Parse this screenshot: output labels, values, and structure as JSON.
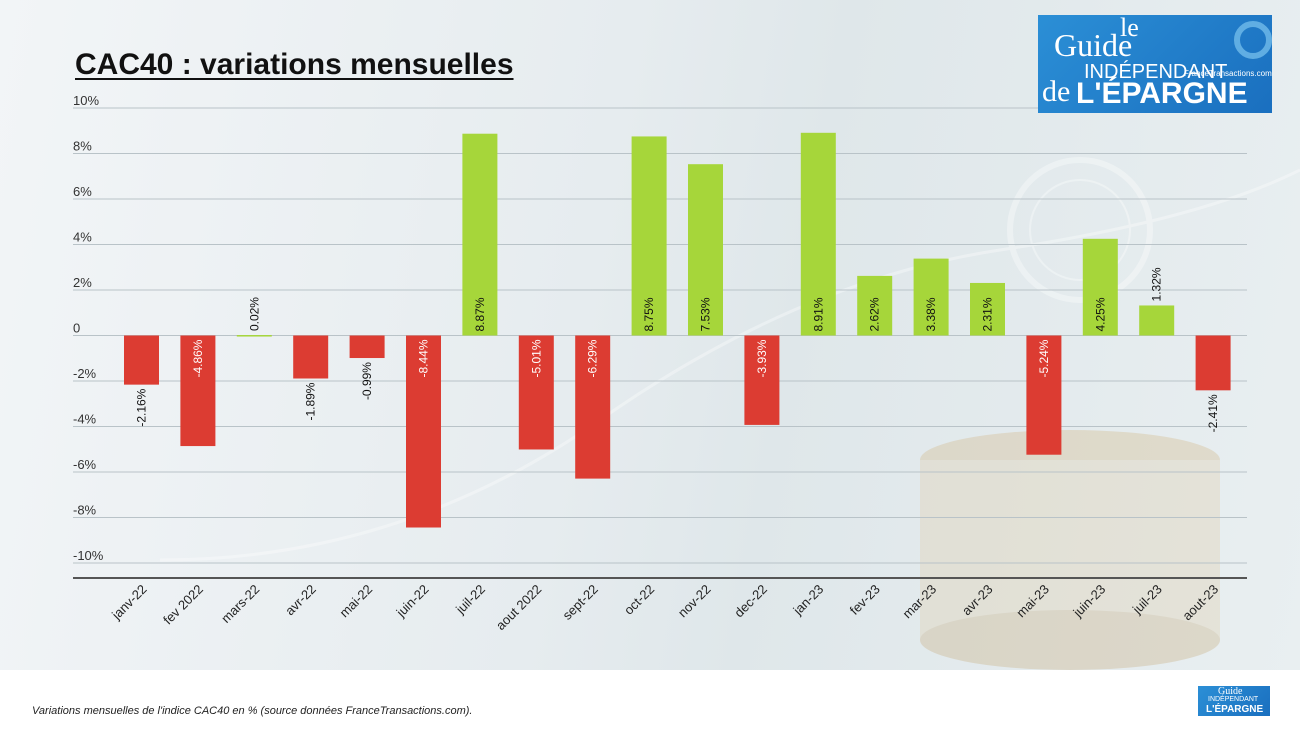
{
  "header": {
    "title": "CAC40 : variations mensuelles"
  },
  "logo": {
    "line1": "le",
    "line2": "Guide",
    "line3": "INDÉPENDANT",
    "line4": "de",
    "line5": "L'ÉPARGNE",
    "site": "FranceTransactions.com"
  },
  "footer": {
    "caption": "Variations mensuelles de l'indice CAC40 en % (source données FranceTransactions.com)."
  },
  "colors": {
    "positive": "#a6d63a",
    "negative": "#dc3c32",
    "grid": "#b9c3c8",
    "axis": "#555555"
  },
  "chart_data": {
    "type": "bar",
    "title": "CAC40 : variations mensuelles",
    "xlabel": "",
    "ylabel": "",
    "ylim": [
      -10,
      10
    ],
    "yticks": [
      {
        "value": 10,
        "label": "10%"
      },
      {
        "value": 8,
        "label": "8%"
      },
      {
        "value": 6,
        "label": "6%"
      },
      {
        "value": 4,
        "label": "4%"
      },
      {
        "value": 2,
        "label": "2%"
      },
      {
        "value": 0,
        "label": "0"
      },
      {
        "value": -2,
        "label": "-2%"
      },
      {
        "value": -4,
        "label": "-4%"
      },
      {
        "value": -6,
        "label": "-6%"
      },
      {
        "value": -8,
        "label": "-8%"
      },
      {
        "value": -10,
        "label": "-10%"
      }
    ],
    "grid": true,
    "categories": [
      "janv-22",
      "fev 2022",
      "mars-22",
      "avr-22",
      "mai-22",
      "juin-22",
      "juil-22",
      "aout 2022",
      "sept-22",
      "oct-22",
      "nov-22",
      "dec-22",
      "jan-23",
      "fev-23",
      "mar-23",
      "avr-23",
      "mai-23",
      "juin-23",
      "juil-23",
      "aout-23"
    ],
    "values": [
      -2.16,
      -4.86,
      0.02,
      -1.89,
      -0.99,
      -8.44,
      8.87,
      -5.01,
      -6.29,
      8.75,
      7.53,
      -3.93,
      8.91,
      2.62,
      3.38,
      2.31,
      -5.24,
      4.25,
      1.32,
      -2.41
    ],
    "labels": [
      "-2.16%",
      "-4.86%",
      "0.02%",
      "-1.89%",
      "-0.99%",
      "-8.44%",
      "8.87%",
      "-5.01%",
      "-6.29%",
      "8.75%",
      "7.53%",
      "-3.93%",
      "8.91%",
      "2.62%",
      "3.38%",
      "2.31%",
      "-5.24%",
      "4.25%",
      "1.32%",
      "-2.41%"
    ]
  }
}
